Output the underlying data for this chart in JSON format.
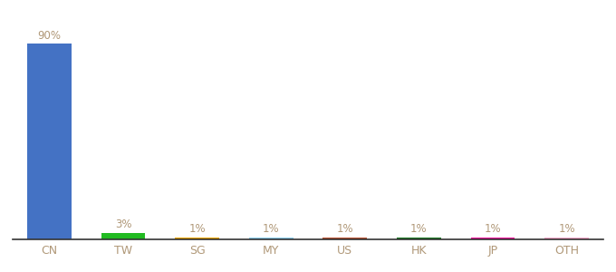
{
  "categories": [
    "CN",
    "TW",
    "SG",
    "MY",
    "US",
    "HK",
    "JP",
    "OTH"
  ],
  "values": [
    90,
    3,
    1,
    1,
    1,
    1,
    1,
    1
  ],
  "bar_colors": [
    "#4472c4",
    "#22bb22",
    "#f0a500",
    "#88ccee",
    "#b85030",
    "#1a7722",
    "#ee1199",
    "#ffaacc"
  ],
  "label_color": "#b09878",
  "background_color": "#ffffff",
  "ylim": [
    0,
    100
  ],
  "bar_width": 0.6,
  "figsize": [
    6.8,
    3.0
  ],
  "dpi": 100
}
